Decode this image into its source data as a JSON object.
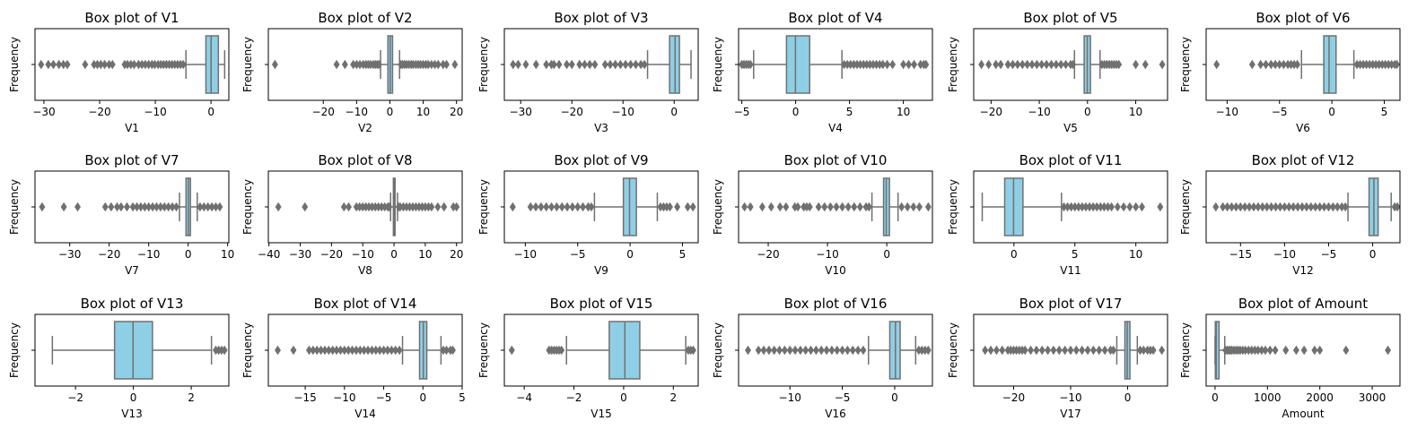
{
  "style": {
    "box_fill": "#8ecfe6",
    "edge_color": "#707070",
    "background": "#ffffff",
    "frame_color": "#000000"
  },
  "chart_data": [
    {
      "type": "box",
      "title": "Box plot of V1",
      "xlabel": "V1",
      "ylabel": "Frequency",
      "xlim": [
        -31.6,
        3.2
      ],
      "xticks": [
        -30,
        -20,
        -10,
        0
      ],
      "whisker_low": -4.5,
      "q1": -0.92,
      "median": 0.02,
      "q3": 1.32,
      "whisker_high": 2.45,
      "outliers": [
        -30.5,
        -29.2,
        -28.3,
        -27.3,
        -26.5,
        -25.8,
        -22.6,
        -21.0,
        -20.4,
        -19.8,
        -19.1,
        -18.3,
        -17.7,
        -15.5,
        -15.0,
        -14.4,
        -13.8,
        -13.0,
        -12.4,
        -11.8,
        -11.2,
        -10.6,
        -10.1,
        -9.5,
        -9.0,
        -8.5,
        -8.0,
        -7.5,
        -7.0,
        -6.5,
        -6.0,
        -5.5,
        -5.0
      ]
    },
    {
      "type": "box",
      "title": "Box plot of V2",
      "xlabel": "V2",
      "ylabel": "Frequency",
      "xlim": [
        -36.5,
        21.7
      ],
      "xticks": [
        -20,
        -10,
        0,
        10,
        20
      ],
      "whisker_low": -2.8,
      "q1": -0.6,
      "median": 0.07,
      "q3": 0.8,
      "whisker_high": 2.9,
      "outliers": [
        -34.5,
        -16.0,
        -13.5,
        -11.0,
        -10.0,
        -9.0,
        -8.0,
        -7.2,
        -6.5,
        -5.8,
        -5.0,
        -4.4,
        -3.8,
        -3.3,
        3.3,
        3.8,
        4.4,
        5.0,
        5.7,
        6.4,
        7.0,
        7.8,
        8.5,
        9.2,
        10.0,
        10.8,
        11.5,
        12.5,
        13.5,
        14.5,
        16.0,
        17.0,
        19.5
      ]
    },
    {
      "type": "box",
      "title": "Box plot of V3",
      "xlabel": "V3",
      "ylabel": "Frequency",
      "xlim": [
        -33.2,
        4.7
      ],
      "xticks": [
        -30,
        -20,
        -10,
        0
      ],
      "whisker_low": -5.2,
      "q1": -0.89,
      "median": 0.18,
      "q3": 1.03,
      "whisker_high": 3.3,
      "outliers": [
        -31.5,
        -30.5,
        -29.0,
        -27.0,
        -25.0,
        -24.0,
        -23.5,
        -22.5,
        -21.0,
        -20.0,
        -18.5,
        -17.5,
        -16.5,
        -15.5,
        -13.5,
        -12.5,
        -11.5,
        -10.5,
        -9.5,
        -8.5,
        -7.5,
        -6.5,
        -5.8
      ]
    },
    {
      "type": "box",
      "title": "Box plot of V4",
      "xlabel": "V4",
      "ylabel": "Frequency",
      "xlim": [
        -5.3,
        12.7
      ],
      "xticks": [
        -5,
        0,
        5,
        10
      ],
      "whisker_low": -3.9,
      "q1": -0.85,
      "median": -0.02,
      "q3": 1.3,
      "whisker_high": 4.3,
      "outliers": [
        -5.0,
        -4.8,
        -4.6,
        -4.4,
        -4.2,
        4.5,
        4.8,
        5.1,
        5.4,
        5.7,
        6.0,
        6.3,
        6.6,
        6.9,
        7.2,
        7.5,
        7.8,
        8.1,
        8.5,
        9.0,
        10.0,
        10.5,
        11.0,
        11.6,
        11.9,
        12.1
      ]
    },
    {
      "type": "box",
      "title": "Box plot of V5",
      "xlabel": "V5",
      "ylabel": "Frequency",
      "xlim": [
        -23.6,
        16.6
      ],
      "xticks": [
        -20,
        -10,
        0,
        10
      ],
      "whisker_low": -2.7,
      "q1": -0.69,
      "median": -0.05,
      "q3": 0.61,
      "whisker_high": 2.6,
      "outliers": [
        -22.0,
        -20.5,
        -19.0,
        -18.0,
        -16.5,
        -15.5,
        -14.5,
        -13.5,
        -12.5,
        -11.5,
        -10.5,
        -9.5,
        -8.5,
        -7.5,
        -6.5,
        -5.5,
        -4.5,
        -3.5,
        -3.0,
        3.0,
        3.5,
        4.0,
        4.5,
        5.0,
        5.5,
        6.0,
        6.5,
        10.0,
        12.0,
        15.5
      ]
    },
    {
      "type": "box",
      "title": "Box plot of V6",
      "xlabel": "V6",
      "ylabel": "Frequency",
      "xlim": [
        -12.0,
        6.5
      ],
      "xticks": [
        -10,
        -5,
        0,
        5
      ],
      "whisker_low": -2.9,
      "q1": -0.77,
      "median": -0.27,
      "q3": 0.4,
      "whisker_high": 2.1,
      "outliers": [
        -11.0,
        -7.6,
        -6.8,
        -6.3,
        -5.8,
        -5.4,
        -5.0,
        -4.6,
        -4.2,
        -3.9,
        -3.6,
        -3.3,
        2.4,
        2.7,
        3.0,
        3.3,
        3.6,
        3.9,
        4.2,
        4.5,
        4.8,
        5.1,
        5.4,
        5.7,
        6.0,
        6.2
      ]
    },
    {
      "type": "box",
      "title": "Box plot of V7",
      "xlabel": "V7",
      "ylabel": "Frequency",
      "xlim": [
        -38.8,
        10.3
      ],
      "xticks": [
        -30,
        -20,
        -10,
        0,
        10
      ],
      "whisker_low": -2.2,
      "q1": -0.55,
      "median": 0.04,
      "q3": 0.57,
      "whisker_high": 2.3,
      "outliers": [
        -37.0,
        -31.5,
        -28.0,
        -21.0,
        -19.5,
        -18.0,
        -17.0,
        -15.5,
        -14.0,
        -13.0,
        -12.0,
        -11.0,
        -10.0,
        -9.0,
        -8.0,
        -7.0,
        -6.0,
        -5.0,
        -4.0,
        -3.0,
        3.0,
        4.0,
        5.0,
        6.0,
        7.0,
        8.0
      ]
    },
    {
      "type": "box",
      "title": "Box plot of V8",
      "xlabel": "V8",
      "ylabel": "Frequency",
      "xlim": [
        -40.2,
        21.8
      ],
      "xticks": [
        -40,
        -30,
        -20,
        -10,
        0,
        10,
        20
      ],
      "whisker_low": -1.1,
      "q1": -0.2,
      "median": 0.02,
      "q3": 0.33,
      "whisker_high": 1.1,
      "outliers": [
        -37.0,
        -28.5,
        -16.0,
        -14.5,
        -12.0,
        -11.0,
        -10.0,
        -9.0,
        -8.0,
        -7.0,
        -6.0,
        -5.0,
        -4.0,
        -3.0,
        -2.0,
        -1.5,
        1.5,
        2.0,
        3.0,
        4.0,
        5.0,
        6.0,
        7.0,
        8.0,
        9.0,
        10.0,
        11.0,
        12.0,
        14.0,
        16.0,
        19.0,
        20.0
      ]
    },
    {
      "type": "box",
      "title": "Box plot of V9",
      "xlabel": "V9",
      "ylabel": "Frequency",
      "xlim": [
        -12.0,
        6.5
      ],
      "xticks": [
        -10,
        -5,
        0,
        5
      ],
      "whisker_low": -3.4,
      "q1": -0.64,
      "median": -0.05,
      "q3": 0.6,
      "whisker_high": 2.6,
      "outliers": [
        -11.2,
        -9.5,
        -9.0,
        -8.5,
        -8.0,
        -7.5,
        -7.0,
        -6.5,
        -6.0,
        -5.5,
        -5.0,
        -4.5,
        -4.0,
        -3.7,
        2.9,
        3.2,
        3.5,
        3.8,
        4.5,
        5.5,
        6.0
      ]
    },
    {
      "type": "box",
      "title": "Box plot of V10",
      "xlabel": "V10",
      "ylabel": "Frequency",
      "xlim": [
        -25.0,
        7.7
      ],
      "xticks": [
        -20,
        -10,
        0
      ],
      "whisker_low": -2.5,
      "q1": -0.54,
      "median": -0.09,
      "q3": 0.45,
      "whisker_high": 1.9,
      "outliers": [
        -24.0,
        -23.0,
        -21.0,
        -19.5,
        -18.0,
        -17.0,
        -15.5,
        -15.0,
        -14.0,
        -13.5,
        -13.0,
        -11.5,
        -10.5,
        -9.5,
        -8.5,
        -7.5,
        -6.5,
        -5.5,
        -4.5,
        -3.5,
        -3.0,
        2.5,
        3.5,
        4.5,
        5.5,
        7.0
      ]
    },
    {
      "type": "box",
      "title": "Box plot of V11",
      "xlabel": "V11",
      "ylabel": "Frequency",
      "xlim": [
        -3.3,
        12.6
      ],
      "xticks": [
        0,
        5,
        10
      ],
      "whisker_low": -2.6,
      "q1": -0.76,
      "median": -0.03,
      "q3": 0.74,
      "whisker_high": 3.9,
      "outliers": [
        4.1,
        4.4,
        4.7,
        5.0,
        5.3,
        5.6,
        5.9,
        6.2,
        6.5,
        6.8,
        7.1,
        7.4,
        7.7,
        8.0,
        8.5,
        9.0,
        9.5,
        10.0,
        10.5,
        12.0
      ]
    },
    {
      "type": "box",
      "title": "Box plot of V12",
      "xlabel": "V12",
      "ylabel": "Frequency",
      "xlim": [
        -18.9,
        3.1
      ],
      "xticks": [
        -15,
        -10,
        -5,
        0
      ],
      "whisker_low": -2.8,
      "q1": -0.41,
      "median": 0.14,
      "q3": 0.62,
      "whisker_high": 2.1,
      "outliers": [
        -17.8,
        -17.0,
        -16.5,
        -16.0,
        -15.5,
        -15.0,
        -14.5,
        -14.0,
        -13.5,
        -13.0,
        -12.5,
        -12.0,
        -11.5,
        -11.0,
        -10.5,
        -10.0,
        -9.5,
        -9.0,
        -8.5,
        -8.0,
        -7.5,
        -7.0,
        -6.5,
        -6.0,
        -5.5,
        -5.0,
        -4.5,
        -4.0,
        -3.5,
        -3.1,
        2.5,
        2.8
      ]
    },
    {
      "type": "box",
      "title": "Box plot of V13",
      "xlabel": "V13",
      "ylabel": "Frequency",
      "xlim": [
        -3.4,
        3.3
      ],
      "xticks": [
        -2,
        0,
        2
      ],
      "whisker_low": -2.8,
      "q1": -0.65,
      "median": -0.01,
      "q3": 0.66,
      "whisker_high": 2.7,
      "outliers": [
        2.85,
        2.95,
        3.05,
        3.15
      ]
    },
    {
      "type": "box",
      "title": "Box plot of V14",
      "xlabel": "V14",
      "ylabel": "Frequency",
      "xlim": [
        -19.7,
        5.0
      ],
      "xticks": [
        -15,
        -10,
        -5,
        0,
        5
      ],
      "whisker_low": -2.6,
      "q1": -0.43,
      "median": 0.05,
      "q3": 0.49,
      "whisker_high": 2.3,
      "outliers": [
        -18.5,
        -16.5,
        -14.5,
        -14.0,
        -13.5,
        -13.0,
        -12.5,
        -12.0,
        -11.5,
        -11.0,
        -10.5,
        -10.0,
        -9.5,
        -9.0,
        -8.5,
        -8.0,
        -7.5,
        -7.0,
        -6.5,
        -6.0,
        -5.5,
        -5.0,
        -4.5,
        -4.0,
        -3.5,
        -3.0,
        2.6,
        3.0,
        3.5,
        3.8
      ]
    },
    {
      "type": "box",
      "title": "Box plot of V15",
      "xlabel": "V15",
      "ylabel": "Frequency",
      "xlim": [
        -4.8,
        3.0
      ],
      "xticks": [
        -4,
        -2,
        0,
        2
      ],
      "whisker_low": -2.3,
      "q1": -0.58,
      "median": 0.05,
      "q3": 0.65,
      "whisker_high": 2.5,
      "outliers": [
        -4.5,
        -3.0,
        -2.9,
        -2.8,
        -2.7,
        -2.6,
        -2.5,
        2.6,
        2.7,
        2.8
      ]
    },
    {
      "type": "box",
      "title": "Box plot of V16",
      "xlabel": "V16",
      "ylabel": "Frequency",
      "xlim": [
        -14.9,
        3.6
      ],
      "xticks": [
        -10,
        -5,
        0
      ],
      "whisker_low": -2.5,
      "q1": -0.47,
      "median": 0.07,
      "q3": 0.52,
      "whisker_high": 2.0,
      "outliers": [
        -14.0,
        -13.0,
        -12.5,
        -12.0,
        -11.5,
        -11.0,
        -10.5,
        -10.0,
        -9.5,
        -9.0,
        -8.5,
        -8.0,
        -7.5,
        -7.0,
        -6.5,
        -6.0,
        -5.5,
        -5.0,
        -4.5,
        -4.0,
        -3.5,
        -3.0,
        2.3,
        2.6,
        2.9,
        3.2
      ]
    },
    {
      "type": "box",
      "title": "Box plot of V17",
      "xlabel": "V17",
      "ylabel": "Frequency",
      "xlim": [
        -27.0,
        7.0
      ],
      "xticks": [
        -20,
        -10,
        0
      ],
      "whisker_low": -1.9,
      "q1": -0.48,
      "median": -0.07,
      "q3": 0.4,
      "whisker_high": 1.7,
      "outliers": [
        -25.0,
        -24.0,
        -23.0,
        -22.0,
        -21.0,
        -20.5,
        -20.0,
        -19.5,
        -19.0,
        -18.5,
        -18.0,
        -17.0,
        -16.0,
        -15.0,
        -14.0,
        -13.0,
        -12.0,
        -11.0,
        -10.0,
        -9.0,
        -8.0,
        -7.0,
        -6.0,
        -5.0,
        -4.0,
        -3.0,
        -2.5,
        2.2,
        2.8,
        3.5,
        4.0,
        4.5,
        6.0
      ]
    },
    {
      "type": "box",
      "title": "Box plot of Amount",
      "xlabel": "Amount",
      "ylabel": "Frequency",
      "xlim": [
        -170,
        3530
      ],
      "xticks": [
        0,
        1000,
        2000,
        3000
      ],
      "whisker_low": 0,
      "q1": 5.6,
      "median": 22,
      "q3": 77,
      "whisker_high": 185,
      "outliers": [
        200,
        230,
        260,
        290,
        320,
        360,
        400,
        440,
        480,
        530,
        580,
        640,
        700,
        760,
        820,
        890,
        960,
        1050,
        1150,
        1350,
        1550,
        1700,
        1900,
        2000,
        2500,
        3300
      ]
    }
  ]
}
